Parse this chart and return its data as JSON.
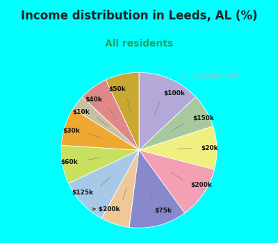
{
  "title": "Income distribution in Leeds, AL (%)",
  "subtitle": "All residents",
  "watermark": "ⓘ City-Data.com",
  "background_color": "#00FFFF",
  "chart_bg_color": "#e8f5ef",
  "labels": [
    "$100k",
    "$150k",
    "$20k",
    "$200k",
    "$75k",
    "> $200k",
    "$125k",
    "$60k",
    "$30k",
    "$10k",
    "$40k",
    "$50k"
  ],
  "values": [
    13,
    7,
    9,
    11,
    12,
    6,
    10,
    8,
    8,
    3,
    6,
    7
  ],
  "colors": [
    "#b3a8d8",
    "#a8c8a0",
    "#f0f080",
    "#f4a0b4",
    "#8888cc",
    "#f0c898",
    "#a8c8e8",
    "#c8e060",
    "#f0a830",
    "#c8c0a0",
    "#e08888",
    "#c8a830"
  ],
  "title_fontsize": 12,
  "subtitle_fontsize": 10,
  "subtitle_color": "#22a060",
  "title_color": "#222222",
  "label_fontsize": 6.5,
  "watermark_color": "#b0b8c0",
  "watermark_fontsize": 7.5
}
